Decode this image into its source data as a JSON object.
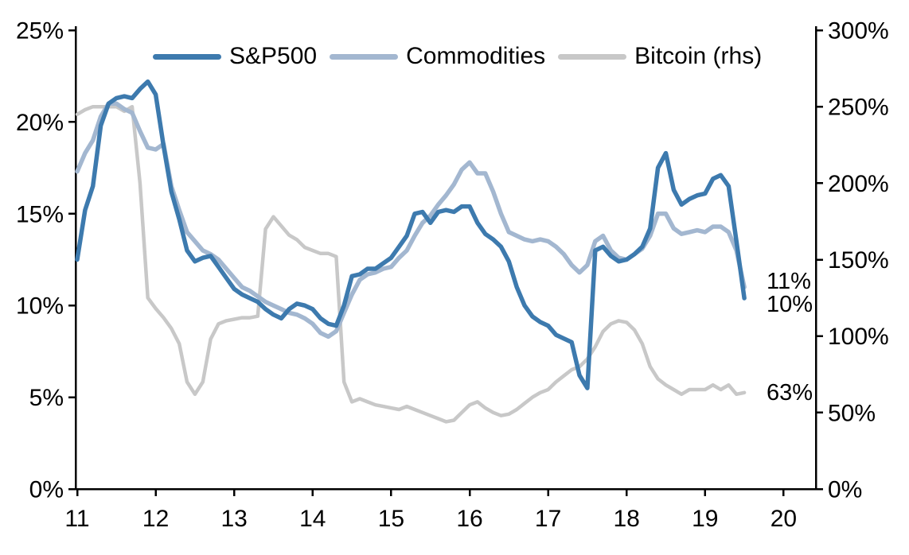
{
  "chart_data": {
    "type": "line",
    "title": "",
    "grid": false,
    "legend_position": "top",
    "legend": [
      {
        "label": "S&P500",
        "color": "#3d7aae",
        "axis": "left"
      },
      {
        "label": "Commodities",
        "color": "#a3b7d0",
        "axis": "left"
      },
      {
        "label": "Bitcoin (rhs)",
        "color": "#c8c8c8",
        "axis": "right"
      }
    ],
    "left_axis": {
      "min": 0,
      "max": 25,
      "tick_values": [
        0,
        5,
        10,
        15,
        20,
        25
      ],
      "tick_labels": [
        "0%",
        "5%",
        "10%",
        "15%",
        "20%",
        "25%"
      ]
    },
    "right_axis": {
      "min": 0,
      "max": 300,
      "tick_values": [
        0,
        50,
        100,
        150,
        200,
        250,
        300
      ],
      "tick_labels": [
        "0%",
        "50%",
        "100%",
        "150%",
        "200%",
        "250%",
        "300%"
      ]
    },
    "x_axis": {
      "tick_values": [
        11,
        12,
        13,
        14,
        15,
        16,
        17,
        18,
        19,
        20
      ],
      "tick_labels": [
        "11",
        "12",
        "13",
        "14",
        "15",
        "16",
        "17",
        "18",
        "19",
        "20"
      ]
    },
    "series": [
      {
        "name": "Bitcoin (rhs)",
        "axis": "right",
        "color": "#c8c8c8",
        "width": 4.5,
        "x_start": 11.0,
        "x_step": 0.1,
        "values": [
          245,
          248,
          250,
          250,
          250,
          250,
          247,
          250,
          200,
          125,
          118,
          112,
          105,
          95,
          70,
          62,
          70,
          98,
          108,
          110,
          111,
          112,
          112,
          113,
          170,
          178,
          172,
          166,
          163,
          158,
          156,
          154,
          154,
          152,
          70,
          57,
          59,
          57,
          55,
          54,
          53,
          52,
          54,
          52,
          50,
          48,
          46,
          44,
          45,
          50,
          55,
          57,
          53,
          50,
          48,
          49,
          52,
          56,
          60,
          63,
          65,
          70,
          74,
          78,
          80,
          85,
          93,
          103,
          108,
          110,
          109,
          104,
          95,
          80,
          72,
          68,
          65,
          62,
          65,
          65,
          65,
          68,
          65,
          68,
          62,
          63
        ]
      },
      {
        "name": "Commodities",
        "axis": "left",
        "color": "#a3b7d0",
        "width": 5.5,
        "x_start": 11.0,
        "x_step": 0.1,
        "values": [
          17.3,
          18.3,
          19.0,
          20.3,
          21.0,
          21.0,
          20.7,
          20.5,
          19.5,
          18.6,
          18.5,
          18.8,
          16.5,
          15.2,
          14.0,
          13.5,
          13.0,
          12.8,
          12.5,
          12.0,
          11.5,
          11.0,
          10.8,
          10.5,
          10.2,
          10.0,
          9.8,
          9.6,
          9.5,
          9.3,
          9.0,
          8.5,
          8.3,
          8.6,
          9.6,
          10.6,
          11.4,
          11.7,
          11.8,
          12.0,
          12.1,
          12.6,
          13.0,
          13.8,
          14.5,
          14.9,
          15.5,
          16.0,
          16.6,
          17.4,
          17.8,
          17.2,
          17.2,
          16.2,
          15.0,
          14.0,
          13.8,
          13.6,
          13.5,
          13.6,
          13.5,
          13.2,
          12.8,
          12.2,
          11.8,
          12.2,
          13.5,
          13.8,
          13.0,
          12.6,
          12.5,
          12.8,
          13.1,
          13.8,
          15.0,
          15.0,
          14.2,
          13.9,
          14.0,
          14.1,
          14.0,
          14.3,
          14.3,
          14.0,
          13.0,
          11.0
        ]
      },
      {
        "name": "S&P500",
        "axis": "left",
        "color": "#3d7aae",
        "width": 5.5,
        "x_start": 11.0,
        "x_step": 0.1,
        "values": [
          12.5,
          15.2,
          16.5,
          19.8,
          21.0,
          21.3,
          21.4,
          21.3,
          21.8,
          22.2,
          21.5,
          18.7,
          16.2,
          14.7,
          13.0,
          12.4,
          12.6,
          12.7,
          12.1,
          11.5,
          10.9,
          10.6,
          10.4,
          10.2,
          9.8,
          9.5,
          9.3,
          9.8,
          10.1,
          10.0,
          9.8,
          9.3,
          9.0,
          8.9,
          10.0,
          11.6,
          11.7,
          12.0,
          12.0,
          12.3,
          12.6,
          13.2,
          13.8,
          15.0,
          15.1,
          14.5,
          15.1,
          15.2,
          15.1,
          15.4,
          15.4,
          14.5,
          13.9,
          13.6,
          13.2,
          12.4,
          11.0,
          10.0,
          9.4,
          9.1,
          8.9,
          8.4,
          8.2,
          8.0,
          6.2,
          5.5,
          13.0,
          13.2,
          12.7,
          12.4,
          12.5,
          12.8,
          13.2,
          14.2,
          17.5,
          18.3,
          16.3,
          15.5,
          15.8,
          16.0,
          16.1,
          16.9,
          17.1,
          16.5,
          13.5,
          10.4
        ]
      }
    ],
    "annotations": [
      {
        "text": "11%",
        "axis": "left",
        "value": 11.3,
        "series": "Commodities"
      },
      {
        "text": "10%",
        "axis": "left",
        "value": 10.05,
        "series": "S&P500"
      },
      {
        "text": "63%",
        "axis": "right",
        "value": 63,
        "series": "Bitcoin (rhs)"
      }
    ]
  }
}
